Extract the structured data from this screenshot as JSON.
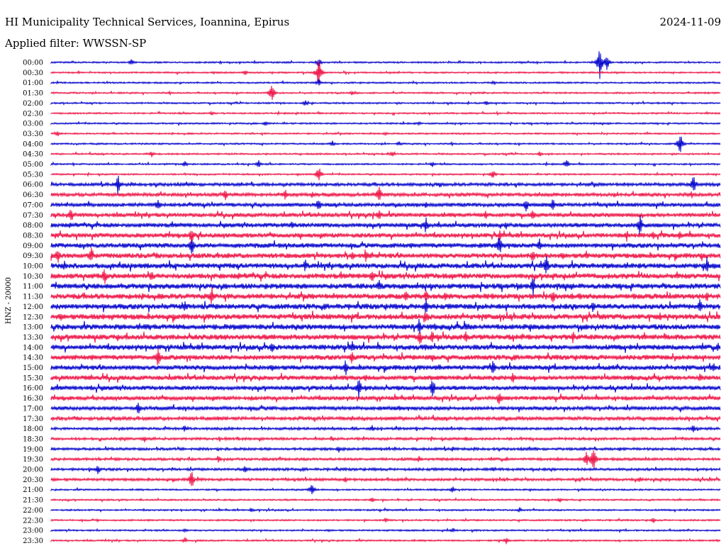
{
  "header": {
    "station": "HI Municipality Technical Services, Ioannina, Epirus",
    "date": "2024-11-09",
    "filter": "Applied filter: WWSSN-SP"
  },
  "chart_data": {
    "type": "line",
    "title": "HI Municipality Technical Services, Ioannina, Epirus",
    "subtitle": "Applied filter: WWSSN-SP",
    "date": "2024-11-09",
    "ylabel": "HNZ - 20000",
    "xlabel": "",
    "grid": false,
    "legend": "none",
    "colors": [
      "#0000cc",
      "#ee1144"
    ],
    "rows": [
      {
        "label": "00:00",
        "events": [
          [
            0.4,
            8
          ],
          [
            0.82,
            22
          ],
          [
            0.83,
            14
          ],
          [
            0.12,
            5
          ]
        ]
      },
      {
        "label": "00:30",
        "events": [
          [
            0.4,
            20
          ],
          [
            0.29,
            4
          ]
        ]
      },
      {
        "label": "01:00",
        "events": [
          [
            0.4,
            6
          ],
          [
            0.66,
            4
          ]
        ]
      },
      {
        "label": "01:30",
        "events": [
          [
            0.33,
            14
          ],
          [
            0.45,
            4
          ]
        ]
      },
      {
        "label": "02:00",
        "events": [
          [
            0.38,
            5
          ],
          [
            0.65,
            4
          ]
        ]
      },
      {
        "label": "02:30",
        "events": [
          [
            0.24,
            3
          ]
        ]
      },
      {
        "label": "03:00",
        "events": [
          [
            0.32,
            4
          ],
          [
            0.55,
            3
          ]
        ]
      },
      {
        "label": "03:30",
        "events": [
          [
            0.01,
            4
          ],
          [
            0.5,
            3
          ]
        ]
      },
      {
        "label": "04:00",
        "events": [
          [
            0.94,
            18
          ],
          [
            0.42,
            5
          ],
          [
            0.52,
            4
          ]
        ]
      },
      {
        "label": "04:30",
        "events": [
          [
            0.15,
            5
          ],
          [
            0.51,
            5
          ],
          [
            0.73,
            4
          ]
        ]
      },
      {
        "label": "05:00",
        "events": [
          [
            0.77,
            8
          ],
          [
            0.2,
            5
          ],
          [
            0.57,
            5
          ],
          [
            0.31,
            6
          ]
        ]
      },
      {
        "label": "05:30",
        "events": [
          [
            0.4,
            12
          ],
          [
            0.66,
            8
          ]
        ]
      },
      {
        "label": "06:00",
        "events": [
          [
            0.1,
            14
          ],
          [
            0.96,
            16
          ],
          [
            0.58,
            5
          ]
        ]
      },
      {
        "label": "06:30",
        "events": [
          [
            0.49,
            14
          ],
          [
            0.26,
            9
          ],
          [
            0.35,
            8
          ],
          [
            0.39,
            5
          ]
        ]
      },
      {
        "label": "07:00",
        "events": [
          [
            0.16,
            12
          ],
          [
            0.4,
            10
          ],
          [
            0.71,
            10
          ],
          [
            0.75,
            11
          ],
          [
            0.56,
            6
          ]
        ]
      },
      {
        "label": "07:30",
        "events": [
          [
            0.03,
            12
          ],
          [
            0.49,
            10
          ],
          [
            0.65,
            7
          ],
          [
            0.72,
            9
          ]
        ]
      },
      {
        "label": "08:00",
        "events": [
          [
            0.88,
            16
          ],
          [
            0.56,
            12
          ],
          [
            0.36,
            7
          ],
          [
            0.68,
            6
          ]
        ]
      },
      {
        "label": "08:30",
        "events": [
          [
            0.21,
            12
          ],
          [
            0.67,
            8
          ],
          [
            0.86,
            9
          ],
          [
            0.94,
            8
          ],
          [
            0.9,
            6
          ]
        ]
      },
      {
        "label": "09:00",
        "events": [
          [
            0.21,
            16
          ],
          [
            0.67,
            16
          ],
          [
            0.73,
            10
          ],
          [
            0.48,
            5
          ]
        ]
      },
      {
        "label": "09:30",
        "events": [
          [
            0.01,
            12
          ],
          [
            0.06,
            12
          ],
          [
            0.45,
            9
          ],
          [
            0.47,
            11
          ],
          [
            0.72,
            11
          ],
          [
            0.8,
            7
          ],
          [
            0.97,
            6
          ]
        ]
      },
      {
        "label": "10:00",
        "events": [
          [
            0.74,
            16
          ],
          [
            0.38,
            10
          ],
          [
            0.98,
            12
          ],
          [
            0.02,
            8
          ],
          [
            0.88,
            5
          ]
        ]
      },
      {
        "label": "10:30",
        "events": [
          [
            0.08,
            14
          ],
          [
            0.15,
            10
          ],
          [
            0.48,
            12
          ],
          [
            0.6,
            6
          ],
          [
            0.75,
            7
          ]
        ]
      },
      {
        "label": "11:00",
        "events": [
          [
            0.49,
            10
          ],
          [
            0.72,
            14
          ],
          [
            0.32,
            5
          ]
        ]
      },
      {
        "label": "11:30",
        "events": [
          [
            0.24,
            16
          ],
          [
            0.53,
            12
          ],
          [
            0.56,
            12
          ],
          [
            0.59,
            9
          ],
          [
            0.75,
            11
          ],
          [
            0.79,
            6
          ],
          [
            0.98,
            8
          ],
          [
            0.66,
            5
          ]
        ]
      },
      {
        "label": "12:00",
        "events": [
          [
            0.2,
            10
          ],
          [
            0.56,
            12
          ],
          [
            0.81,
            10
          ],
          [
            0.97,
            12
          ]
        ]
      },
      {
        "label": "12:30",
        "events": [
          [
            0.56,
            9
          ],
          [
            0.91,
            6
          ],
          [
            0.07,
            5
          ]
        ]
      },
      {
        "label": "13:00",
        "events": [
          [
            0.55,
            12
          ],
          [
            0.62,
            6
          ],
          [
            0.8,
            5
          ],
          [
            0.26,
            5
          ]
        ]
      },
      {
        "label": "13:30",
        "events": [
          [
            0.55,
            12
          ],
          [
            0.57,
            10
          ],
          [
            0.62,
            9
          ],
          [
            0.78,
            9
          ],
          [
            0.1,
            6
          ],
          [
            0.26,
            5
          ]
        ]
      },
      {
        "label": "14:00",
        "events": [
          [
            0.33,
            10
          ],
          [
            0.45,
            12
          ],
          [
            0.56,
            7
          ],
          [
            0.7,
            6
          ]
        ]
      },
      {
        "label": "14:30",
        "events": [
          [
            0.16,
            14
          ],
          [
            0.45,
            10
          ],
          [
            0.57,
            6
          ],
          [
            0.02,
            5
          ]
        ]
      },
      {
        "label": "15:00",
        "events": [
          [
            0.44,
            12
          ],
          [
            0.66,
            12
          ],
          [
            0.58,
            6
          ],
          [
            0.99,
            8
          ]
        ]
      },
      {
        "label": "15:30",
        "events": [
          [
            0.69,
            10
          ],
          [
            0.47,
            6
          ],
          [
            0.97,
            7
          ],
          [
            0.06,
            5
          ]
        ]
      },
      {
        "label": "16:00",
        "events": [
          [
            0.46,
            16
          ],
          [
            0.57,
            16
          ],
          [
            0.06,
            6
          ],
          [
            0.52,
            5
          ]
        ]
      },
      {
        "label": "16:30",
        "events": [
          [
            0.67,
            14
          ],
          [
            0.3,
            5
          ],
          [
            0.86,
            5
          ]
        ]
      },
      {
        "label": "17:00",
        "events": [
          [
            0.13,
            10
          ],
          [
            0.33,
            5
          ],
          [
            0.52,
            5
          ]
        ]
      },
      {
        "label": "17:30",
        "events": [
          [
            0.25,
            4
          ],
          [
            0.45,
            4
          ],
          [
            0.7,
            4
          ]
        ]
      },
      {
        "label": "18:00",
        "events": [
          [
            0.2,
            5
          ],
          [
            0.48,
            5
          ],
          [
            0.64,
            5
          ],
          [
            0.96,
            6
          ]
        ]
      },
      {
        "label": "18:30",
        "events": [
          [
            0.14,
            6
          ],
          [
            0.42,
            5
          ],
          [
            0.62,
            4
          ]
        ]
      },
      {
        "label": "19:00",
        "events": [
          [
            0.43,
            5
          ],
          [
            0.6,
            4
          ],
          [
            0.85,
            4
          ]
        ]
      },
      {
        "label": "19:30",
        "events": [
          [
            0.8,
            14
          ],
          [
            0.81,
            22
          ],
          [
            0.25,
            6
          ],
          [
            0.55,
            5
          ]
        ]
      },
      {
        "label": "20:00",
        "events": [
          [
            0.07,
            8
          ],
          [
            0.29,
            7
          ],
          [
            0.66,
            5
          ]
        ]
      },
      {
        "label": "20:30",
        "events": [
          [
            0.21,
            14
          ],
          [
            0.44,
            5
          ],
          [
            0.88,
            4
          ]
        ]
      },
      {
        "label": "21:00",
        "events": [
          [
            0.39,
            10
          ],
          [
            0.6,
            5
          ]
        ]
      },
      {
        "label": "21:30",
        "events": [
          [
            0.48,
            4
          ],
          [
            0.76,
            4
          ]
        ]
      },
      {
        "label": "22:00",
        "events": [
          [
            0.3,
            4
          ],
          [
            0.7,
            4
          ]
        ]
      },
      {
        "label": "22:30",
        "events": [
          [
            0.5,
            4
          ],
          [
            0.9,
            4
          ]
        ]
      },
      {
        "label": "23:00",
        "events": [
          [
            0.2,
            4
          ],
          [
            0.6,
            4
          ]
        ]
      },
      {
        "label": "23:30",
        "events": [
          [
            0.2,
            5
          ],
          [
            0.68,
            5
          ]
        ]
      }
    ]
  }
}
